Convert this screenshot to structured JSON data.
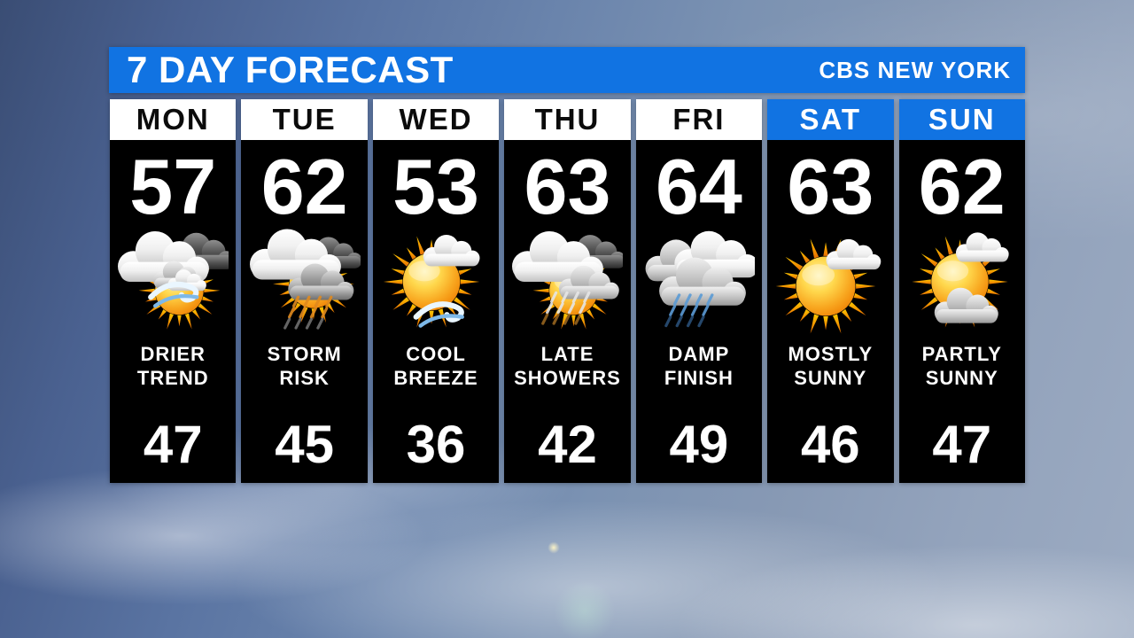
{
  "header": {
    "title": "7 DAY FORECAST",
    "station": "CBS NEW YORK"
  },
  "colors": {
    "brand_blue": "#1173e2",
    "panel_black": "#000000",
    "header_text_dark": "#0b0b0b",
    "text_white": "#ffffff"
  },
  "days": [
    {
      "name": "MON",
      "header_variant": "white",
      "high": "57",
      "low": "47",
      "label_line1": "DRIER",
      "label_line2": "TREND",
      "icon": "sun-clouds-wind"
    },
    {
      "name": "TUE",
      "header_variant": "white",
      "high": "62",
      "low": "45",
      "label_line1": "STORM",
      "label_line2": "RISK",
      "icon": "sun-storm-rain"
    },
    {
      "name": "WED",
      "header_variant": "white",
      "high": "53",
      "low": "36",
      "label_line1": "COOL",
      "label_line2": "BREEZE",
      "icon": "sun-cloud-breeze"
    },
    {
      "name": "THU",
      "header_variant": "white",
      "high": "63",
      "low": "42",
      "label_line1": "LATE",
      "label_line2": "SHOWERS",
      "icon": "clouds-sun-rain"
    },
    {
      "name": "FRI",
      "header_variant": "white",
      "high": "64",
      "low": "49",
      "label_line1": "DAMP",
      "label_line2": "FINISH",
      "icon": "rain-clouds"
    },
    {
      "name": "SAT",
      "header_variant": "blue",
      "high": "63",
      "low": "46",
      "label_line1": "MOSTLY",
      "label_line2": "SUNNY",
      "icon": "mostly-sunny"
    },
    {
      "name": "SUN",
      "header_variant": "blue",
      "high": "62",
      "low": "47",
      "label_line1": "PARTLY",
      "label_line2": "SUNNY",
      "icon": "partly-sunny"
    }
  ],
  "chart_data": {
    "type": "table",
    "title": "7 DAY FORECAST",
    "subtitle": "CBS NEW YORK",
    "categories": [
      "MON",
      "TUE",
      "WED",
      "THU",
      "FRI",
      "SAT",
      "SUN"
    ],
    "series": [
      {
        "name": "High (°F)",
        "values": [
          57,
          62,
          53,
          63,
          64,
          63,
          62
        ]
      },
      {
        "name": "Low (°F)",
        "values": [
          47,
          45,
          36,
          42,
          49,
          46,
          47
        ]
      }
    ],
    "conditions": [
      "DRIER TREND",
      "STORM RISK",
      "COOL BREEZE",
      "LATE SHOWERS",
      "DAMP FINISH",
      "MOSTLY SUNNY",
      "PARTLY SUNNY"
    ]
  }
}
